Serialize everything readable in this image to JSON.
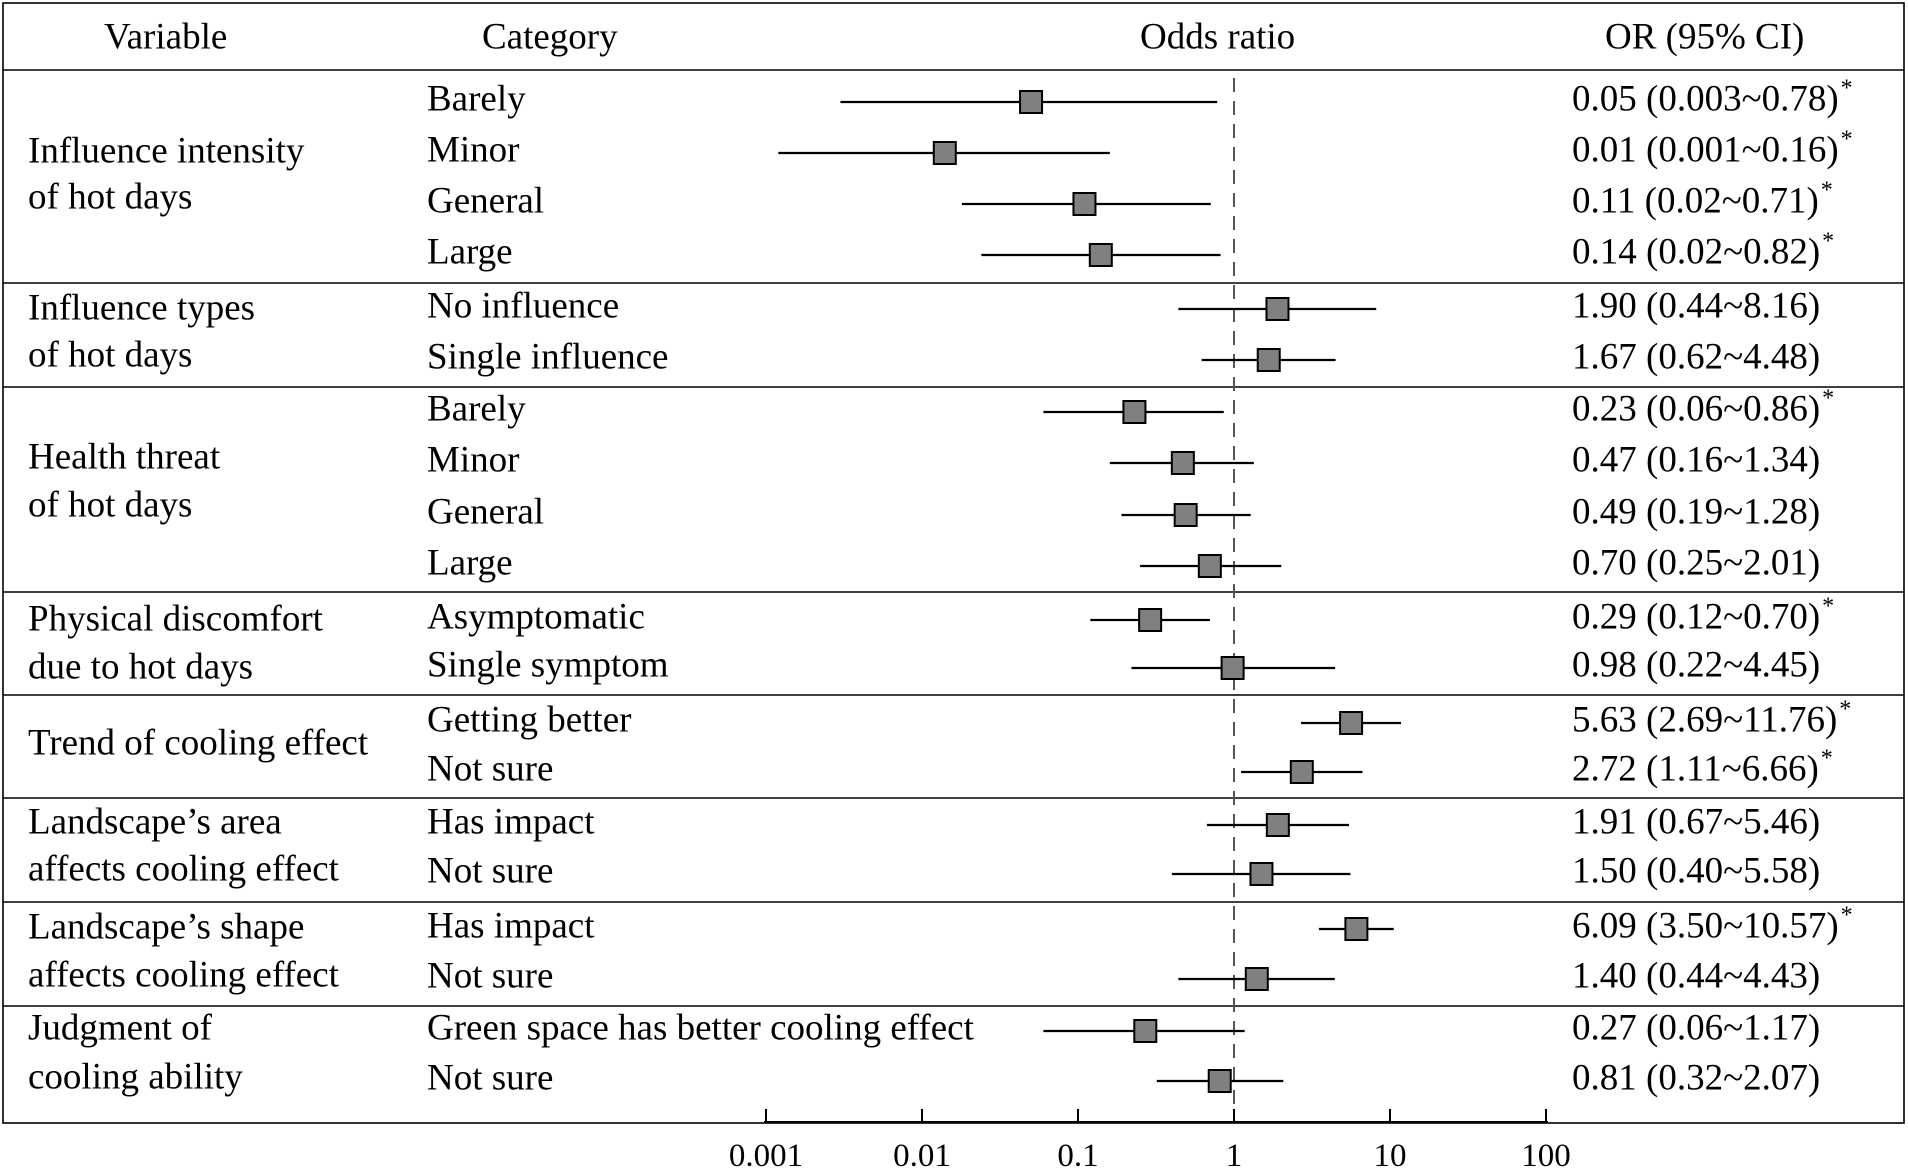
{
  "chart_data": {
    "type": "forest",
    "headers": {
      "variable": "Variable",
      "category": "Category",
      "plot": "Odds ratio",
      "or": "OR (95% CI)"
    },
    "x_scale": "log10",
    "xlim": [
      0.0005,
      120
    ],
    "reference_line": 1,
    "x_ticks": [
      {
        "value": 0.001,
        "label": "0.001"
      },
      {
        "value": 0.01,
        "label": "0.01"
      },
      {
        "value": 0.1,
        "label": "0.1"
      },
      {
        "value": 1,
        "label": "1"
      },
      {
        "value": 10,
        "label": "10"
      },
      {
        "value": 100,
        "label": "100"
      }
    ],
    "groups": [
      {
        "variable": [
          "Influence intensity",
          "of hot days"
        ],
        "rows": [
          {
            "category": "Barely",
            "or": 0.05,
            "low": 0.003,
            "high": 0.78,
            "label": "0.05 (0.003~0.78)",
            "sig": "*"
          },
          {
            "category": "Minor",
            "or": 0.014,
            "low": 0.0012,
            "high": 0.16,
            "label": "0.01 (0.001~0.16)",
            "sig": "*"
          },
          {
            "category": "General",
            "or": 0.11,
            "low": 0.018,
            "high": 0.71,
            "label": "0.11 (0.02~0.71)",
            "sig": "*"
          },
          {
            "category": "Large",
            "or": 0.14,
            "low": 0.024,
            "high": 0.82,
            "label": "0.14 (0.02~0.82)",
            "sig": "*"
          }
        ]
      },
      {
        "variable": [
          "Influence types",
          "of hot days"
        ],
        "rows": [
          {
            "category": "No influence",
            "or": 1.9,
            "low": 0.44,
            "high": 8.16,
            "label": "1.90 (0.44~8.16)",
            "sig": ""
          },
          {
            "category": "Single influence",
            "or": 1.67,
            "low": 0.62,
            "high": 4.48,
            "label": "1.67 (0.62~4.48)",
            "sig": ""
          }
        ]
      },
      {
        "variable": [
          "Health threat",
          "of hot days"
        ],
        "rows": [
          {
            "category": "Barely",
            "or": 0.23,
            "low": 0.06,
            "high": 0.86,
            "label": "0.23 (0.06~0.86)",
            "sig": "*"
          },
          {
            "category": "Minor",
            "or": 0.47,
            "low": 0.16,
            "high": 1.34,
            "label": "0.47 (0.16~1.34)",
            "sig": ""
          },
          {
            "category": "General",
            "or": 0.49,
            "low": 0.19,
            "high": 1.28,
            "label": "0.49 (0.19~1.28)",
            "sig": ""
          },
          {
            "category": "Large",
            "or": 0.7,
            "low": 0.25,
            "high": 2.01,
            "label": "0.70 (0.25~2.01)",
            "sig": ""
          }
        ]
      },
      {
        "variable": [
          "Physical discomfort",
          "due to hot days"
        ],
        "rows": [
          {
            "category": "Asymptomatic",
            "or": 0.29,
            "low": 0.12,
            "high": 0.7,
            "label": "0.29 (0.12~0.70)",
            "sig": "*"
          },
          {
            "category": "Single symptom",
            "or": 0.98,
            "low": 0.22,
            "high": 4.45,
            "label": "0.98 (0.22~4.45)",
            "sig": ""
          }
        ]
      },
      {
        "variable": [
          "Trend of cooling effect"
        ],
        "rows": [
          {
            "category": "Getting better",
            "or": 5.63,
            "low": 2.69,
            "high": 11.76,
            "label": "5.63 (2.69~11.76)",
            "sig": "*"
          },
          {
            "category": "Not sure",
            "or": 2.72,
            "low": 1.11,
            "high": 6.66,
            "label": "2.72 (1.11~6.66)",
            "sig": "*"
          }
        ]
      },
      {
        "variable": [
          "Landscape’s area",
          "affects cooling effect"
        ],
        "rows": [
          {
            "category": "Has impact",
            "or": 1.91,
            "low": 0.67,
            "high": 5.46,
            "label": "1.91 (0.67~5.46)",
            "sig": ""
          },
          {
            "category": "Not sure",
            "or": 1.5,
            "low": 0.4,
            "high": 5.58,
            "label": "1.50 (0.40~5.58)",
            "sig": ""
          }
        ]
      },
      {
        "variable": [
          "Landscape’s shape",
          "affects cooling effect"
        ],
        "rows": [
          {
            "category": "Has impact",
            "or": 6.09,
            "low": 3.5,
            "high": 10.57,
            "label": "6.09 (3.50~10.57)",
            "sig": "*"
          },
          {
            "category": "Not sure",
            "or": 1.4,
            "low": 0.44,
            "high": 4.43,
            "label": "1.40 (0.44~4.43)",
            "sig": ""
          }
        ]
      },
      {
        "variable": [
          "Judgment of",
          "cooling ability"
        ],
        "rows": [
          {
            "category": "Green space has better cooling effect",
            "or": 0.27,
            "low": 0.06,
            "high": 1.17,
            "label": "0.27 (0.06~1.17)",
            "sig": ""
          },
          {
            "category": "Not sure",
            "or": 0.81,
            "low": 0.32,
            "high": 2.07,
            "label": "0.81 (0.32~2.07)",
            "sig": ""
          }
        ]
      }
    ],
    "colors": {
      "marker": "#808080",
      "line": "#000000",
      "dash": "#555555"
    }
  }
}
